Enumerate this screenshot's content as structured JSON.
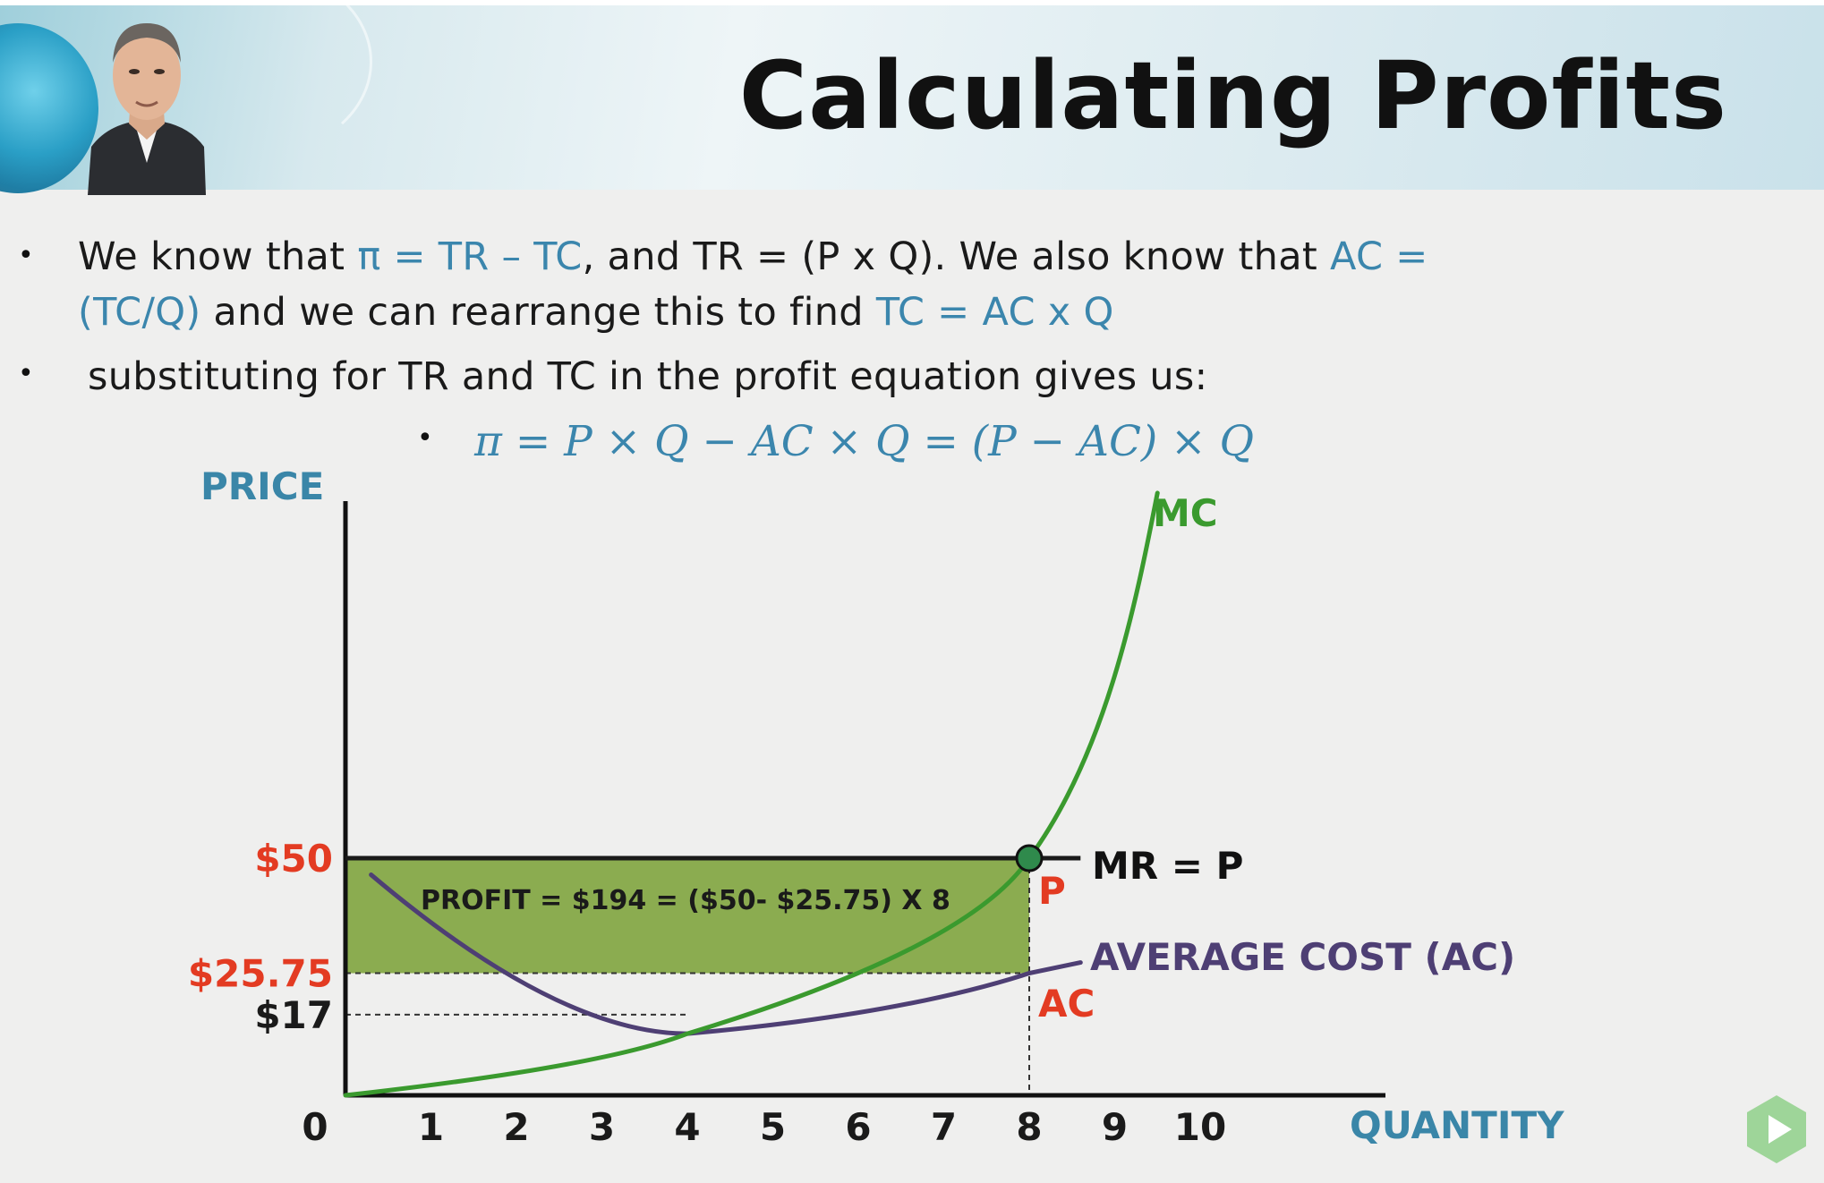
{
  "slide": {
    "title": "Calculating Profits",
    "bullets": [
      {
        "line1": [
          {
            "text": "We know that ",
            "hl": false
          },
          {
            "text": "π = TR – TC",
            "hl": true
          },
          {
            "text": ", and TR = (P x Q). We also know that ",
            "hl": false
          },
          {
            "text": "AC =",
            "hl": true
          }
        ],
        "line2": [
          {
            "text": "(TC/Q)",
            "hl": true
          },
          {
            "text": " and we can rearrange this to find ",
            "hl": false
          },
          {
            "text": "TC = AC x Q",
            "hl": true
          }
        ]
      },
      {
        "line1": [
          {
            "text": "substituting for TR and TC in the profit equation gives us:",
            "hl": false
          }
        ]
      }
    ],
    "formula": "π = P × Q − AC × Q = (P − AC) × Q"
  },
  "chart_data": {
    "type": "line",
    "ylabel": "PRICE",
    "xlabel": "QUANTITY",
    "x_ticks": [
      "0",
      "1",
      "2",
      "3",
      "4",
      "5",
      "6",
      "7",
      "8",
      "9",
      "10"
    ],
    "y_ticks": [
      {
        "label": "$50",
        "value": 50
      },
      {
        "label": "$25.75",
        "value": 25.75
      },
      {
        "label": "$17",
        "value": 17
      }
    ],
    "series": [
      {
        "name": "MC",
        "color": "#3a9a2e",
        "x": [
          0,
          4,
          8,
          9.5
        ],
        "y": [
          0,
          13,
          50,
          127
        ]
      },
      {
        "name": "AVERAGE COST (AC)",
        "color": "#4e3f74",
        "x": [
          0.3,
          4,
          8,
          8.6
        ],
        "y": [
          46.5,
          13,
          25.75,
          28
        ]
      },
      {
        "name": "MR = P",
        "color": "#1a1a1a",
        "x": [
          0,
          8.6
        ],
        "y": [
          50,
          50
        ]
      }
    ],
    "profit_box": {
      "q": 8,
      "price": 50,
      "ac": 25.75,
      "fill": "#7da33a",
      "label": "PROFIT = $194 = ($50- $25.75) X 8"
    },
    "point_labels": {
      "p": "P",
      "ac": "AC"
    },
    "colors": {
      "accent_red": "#e33b22",
      "axis_blue": "#3a86a8"
    }
  },
  "icons": {
    "play": "play-icon"
  }
}
